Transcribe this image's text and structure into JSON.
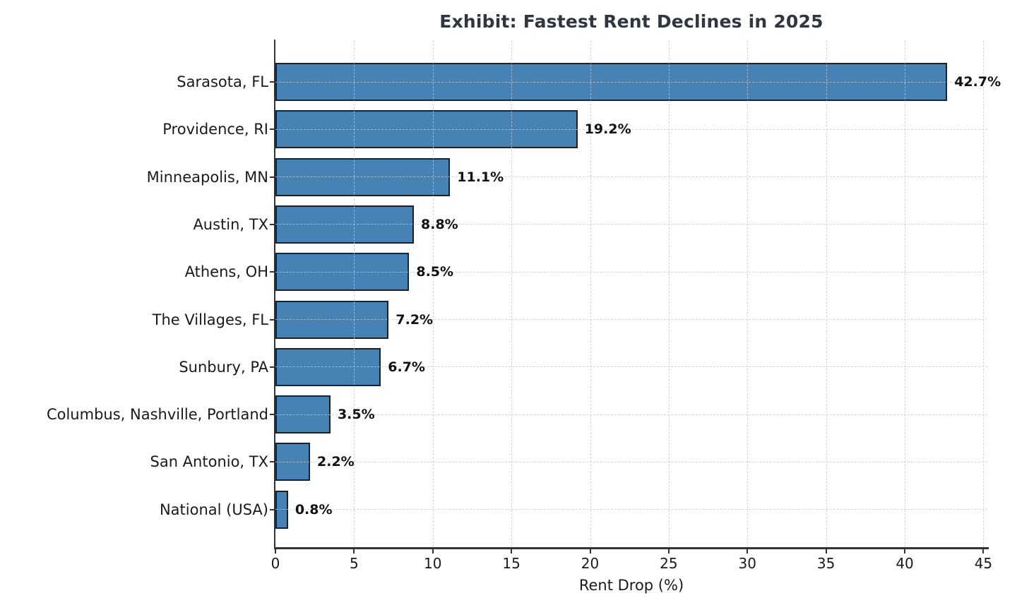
{
  "chart_data": {
    "type": "bar",
    "orientation": "horizontal",
    "title": "Exhibit: Fastest Rent Declines in 2025",
    "xlabel": "Rent Drop (%)",
    "ylabel": "",
    "categories": [
      "Sarasota, FL",
      "Providence, RI",
      "Minneapolis, MN",
      "Austin, TX",
      "Athens, OH",
      "The Villages, FL",
      "Sunbury, PA",
      "Columbus, Nashville, Portland",
      "San Antonio, TX",
      "National (USA)"
    ],
    "values": [
      42.7,
      19.2,
      11.1,
      8.8,
      8.5,
      7.2,
      6.7,
      3.5,
      2.2,
      0.8
    ],
    "value_labels": [
      "42.7%",
      "19.2%",
      "11.1%",
      "8.8%",
      "8.5%",
      "7.2%",
      "6.7%",
      "3.5%",
      "2.2%",
      "0.8%"
    ],
    "xlim": [
      0,
      45.25
    ],
    "xticks": [
      0,
      5,
      10,
      15,
      20,
      25,
      30,
      35,
      40,
      45
    ],
    "grid": true,
    "legend": "none",
    "colors": {
      "bar_fill": "#4682b4",
      "bar_edge": "#16222e",
      "title": "#2f3640",
      "axis": "#333333",
      "grid": "#c8c8c8",
      "text": "#1a1a1a",
      "background": "#ffffff"
    }
  }
}
